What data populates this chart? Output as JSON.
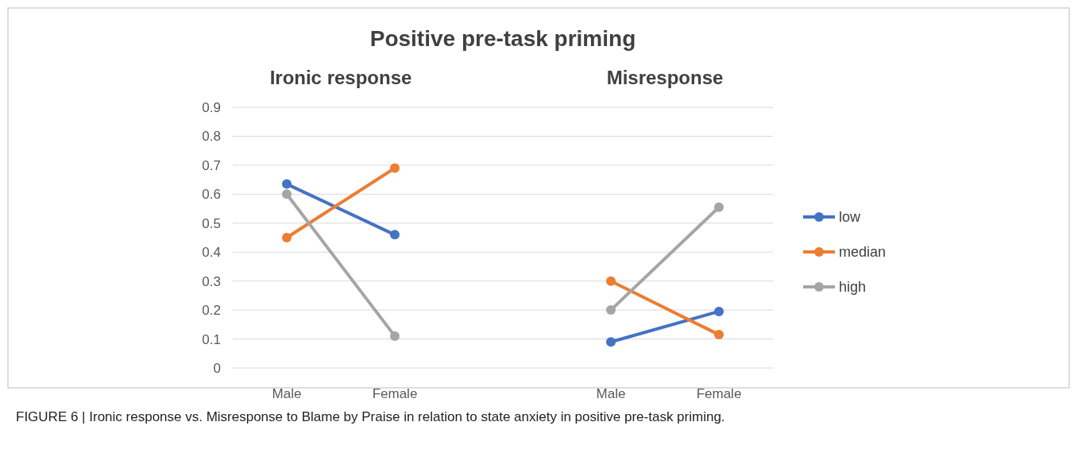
{
  "chart_data": {
    "type": "line",
    "title": "Positive pre-task priming",
    "categories": [
      "Male",
      "Female",
      null,
      "Male",
      "Female"
    ],
    "series": [
      {
        "name": "low",
        "color": "#4472c4",
        "values": [
          0.635,
          0.46,
          null,
          0.09,
          0.195
        ]
      },
      {
        "name": "median",
        "color": "#ed7d31",
        "values": [
          0.45,
          0.69,
          null,
          0.3,
          0.115
        ]
      },
      {
        "name": "high",
        "color": "#a5a5a5",
        "values": [
          0.6,
          0.11,
          null,
          0.2,
          0.555
        ]
      }
    ],
    "ylim": [
      0,
      0.9
    ],
    "yticks": [
      0,
      0.1,
      0.2,
      0.3,
      0.4,
      0.5,
      0.6,
      0.7,
      0.8,
      0.9
    ],
    "grid": "y",
    "legend": "right",
    "marker": "circle",
    "line_style": "solid",
    "annotations": [
      "Ironic response",
      "Misresponse",
      "FIGURE 6 | Ironic response vs. Misresponse to Blame by Praise in relation to state anxiety in positive pre-task priming."
    ]
  }
}
